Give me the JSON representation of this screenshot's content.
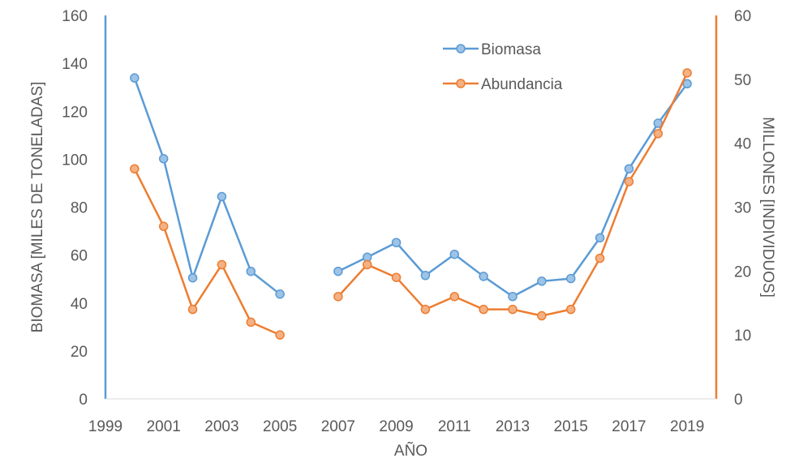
{
  "chart_data": {
    "type": "line",
    "x": [
      2000,
      2001,
      2002,
      2003,
      2004,
      2005,
      2006,
      2007,
      2008,
      2009,
      2010,
      2011,
      2012,
      2013,
      2014,
      2015,
      2016,
      2017,
      2018,
      2019
    ],
    "xlabel": "AÑO",
    "ylabel_left": "BIOMASA [MILES DE TONELADAS]",
    "ylabel_right": "MILLONES [INDIVIDUOS]",
    "xlim": [
      1999,
      2020
    ],
    "ylim_left": [
      0,
      160
    ],
    "ylim_right": [
      0,
      60
    ],
    "x_ticks": [
      "1999",
      "2001",
      "2003",
      "2005",
      "2007",
      "2009",
      "2011",
      "2013",
      "2015",
      "2017",
      "2019"
    ],
    "y_left_ticks": [
      "0",
      "20",
      "40",
      "60",
      "80",
      "100",
      "120",
      "140",
      "160"
    ],
    "y_right_ticks": [
      "0",
      "10",
      "20",
      "30",
      "40",
      "50",
      "60"
    ],
    "grid": false,
    "legend_position": "top-right",
    "series": [
      {
        "name": "Biomasa",
        "axis": "left",
        "color": "#5b9bd5",
        "values": [
          133.9,
          100.2,
          50.5,
          84.4,
          53.2,
          43.7,
          null,
          53.2,
          59.1,
          65.2,
          51.5,
          60.3,
          51.1,
          42.7,
          49.1,
          50.2,
          67.2,
          96.0,
          115.0,
          131.5
        ]
      },
      {
        "name": "Abundancia",
        "axis": "right",
        "color": "#ed7d31",
        "values": [
          36.0,
          27.0,
          14.0,
          21.0,
          12.0,
          10.0,
          null,
          16.0,
          21.0,
          19.0,
          14.0,
          16.0,
          14.0,
          14.0,
          13.0,
          14.0,
          22.0,
          34.0,
          41.5,
          51.0
        ]
      }
    ]
  }
}
